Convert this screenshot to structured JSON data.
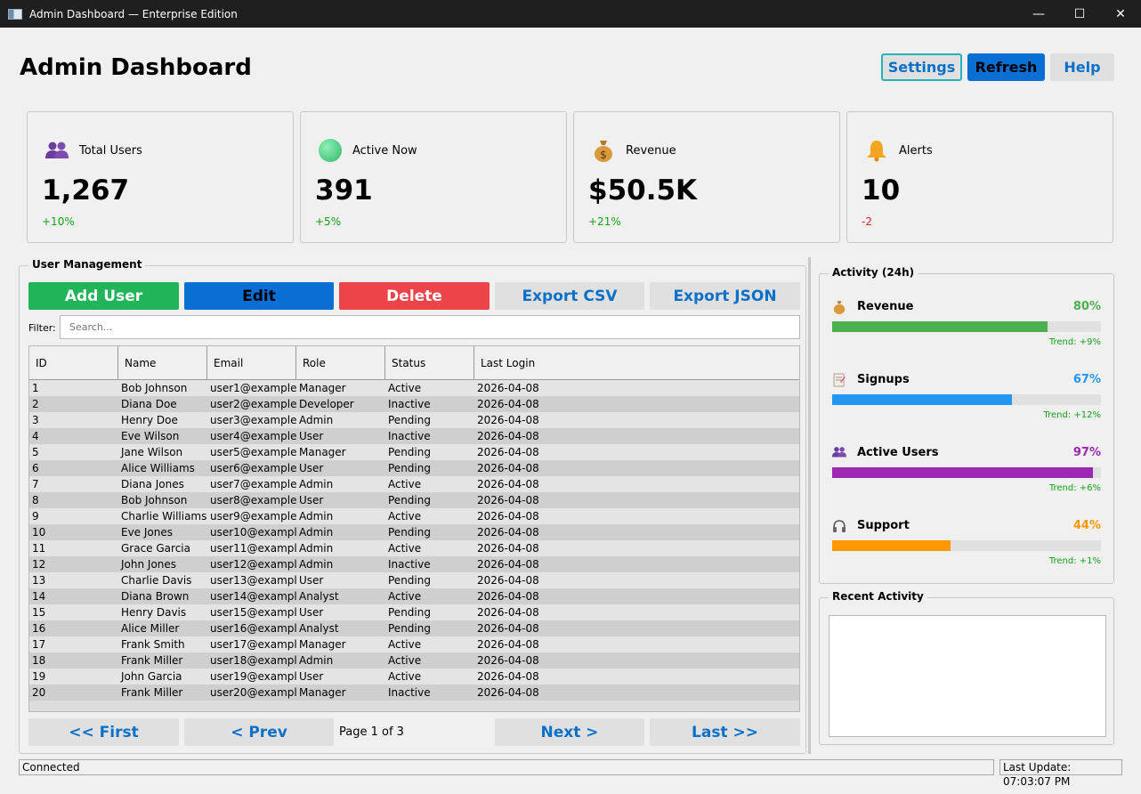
{
  "window": {
    "title": "Admin Dashboard — Enterprise Edition",
    "minimize_glyph": "—",
    "maximize_glyph": "☐",
    "close_glyph": "✕"
  },
  "header": {
    "title": "Admin Dashboard",
    "settings_label": "Settings",
    "refresh_label": "Refresh",
    "help_label": "Help"
  },
  "stats": [
    {
      "icon": "users-icon",
      "label": "Total Users",
      "value": "1,267",
      "change": "+10%",
      "trend": "positive"
    },
    {
      "icon": "green-dot-icon",
      "label": "Active Now",
      "value": "391",
      "change": "+5%",
      "trend": "positive"
    },
    {
      "icon": "money-bag-icon",
      "label": "Revenue",
      "value": "$50.5K",
      "change": "+21%",
      "trend": "positive"
    },
    {
      "icon": "bell-icon",
      "label": "Alerts",
      "value": "10",
      "change": "-2",
      "trend": "negative"
    }
  ],
  "user_management": {
    "title": "User Management",
    "buttons": {
      "add": "Add User",
      "edit": "Edit",
      "delete": "Delete",
      "export_csv": "Export CSV",
      "export_json": "Export JSON"
    },
    "filter_label": "Filter:",
    "filter_placeholder": "Search...",
    "filter_value": "",
    "columns": [
      "ID",
      "Name",
      "Email",
      "Role",
      "Status",
      "Last Login"
    ],
    "rows": [
      [
        "1",
        "Bob Johnson",
        "user1@example...",
        "Manager",
        "Active",
        "2026-04-08"
      ],
      [
        "2",
        "Diana Doe",
        "user2@example...",
        "Developer",
        "Inactive",
        "2026-04-08"
      ],
      [
        "3",
        "Henry Doe",
        "user3@example...",
        "Admin",
        "Pending",
        "2026-04-08"
      ],
      [
        "4",
        "Eve Wilson",
        "user4@example...",
        "User",
        "Inactive",
        "2026-04-08"
      ],
      [
        "5",
        "Jane Wilson",
        "user5@example...",
        "Manager",
        "Pending",
        "2026-04-08"
      ],
      [
        "6",
        "Alice Williams",
        "user6@example...",
        "User",
        "Pending",
        "2026-04-08"
      ],
      [
        "7",
        "Diana Jones",
        "user7@example...",
        "Admin",
        "Active",
        "2026-04-08"
      ],
      [
        "8",
        "Bob Johnson",
        "user8@example...",
        "User",
        "Pending",
        "2026-04-08"
      ],
      [
        "9",
        "Charlie Williams",
        "user9@example...",
        "Admin",
        "Active",
        "2026-04-08"
      ],
      [
        "10",
        "Eve Jones",
        "user10@exampl...",
        "Admin",
        "Pending",
        "2026-04-08"
      ],
      [
        "11",
        "Grace Garcia",
        "user11@exampl...",
        "Admin",
        "Active",
        "2026-04-08"
      ],
      [
        "12",
        "John Jones",
        "user12@exampl...",
        "Admin",
        "Inactive",
        "2026-04-08"
      ],
      [
        "13",
        "Charlie Davis",
        "user13@exampl...",
        "User",
        "Pending",
        "2026-04-08"
      ],
      [
        "14",
        "Diana Brown",
        "user14@exampl...",
        "Analyst",
        "Active",
        "2026-04-08"
      ],
      [
        "15",
        "Henry Davis",
        "user15@exampl...",
        "User",
        "Pending",
        "2026-04-08"
      ],
      [
        "16",
        "Alice Miller",
        "user16@exampl...",
        "Analyst",
        "Pending",
        "2026-04-08"
      ],
      [
        "17",
        "Frank Smith",
        "user17@exampl...",
        "Manager",
        "Active",
        "2026-04-08"
      ],
      [
        "18",
        "Frank Miller",
        "user18@exampl...",
        "Admin",
        "Active",
        "2026-04-08"
      ],
      [
        "19",
        "John Garcia",
        "user19@exampl...",
        "User",
        "Active",
        "2026-04-08"
      ],
      [
        "20",
        "Frank Miller",
        "user20@exampl...",
        "Manager",
        "Inactive",
        "2026-04-08"
      ]
    ],
    "pagination": {
      "first": "<< First",
      "prev": "< Prev",
      "page_info": "Page 1 of 3",
      "next": "Next >",
      "last": "Last >>"
    }
  },
  "activity": {
    "title": "Activity (24h)",
    "metrics": [
      {
        "icon": "money-bag-icon",
        "name": "Revenue",
        "percent_label": "80%",
        "percent": 80,
        "trend": "Trend: +9%",
        "color": "#4caf50"
      },
      {
        "icon": "memo-icon",
        "name": "Signups",
        "percent_label": "67%",
        "percent": 67,
        "trend": "Trend: +12%",
        "color": "#2196f3"
      },
      {
        "icon": "users-icon",
        "name": "Active Users",
        "percent_label": "97%",
        "percent": 97,
        "trend": "Trend: +6%",
        "color": "#9c27b0"
      },
      {
        "icon": "headphones-icon",
        "name": "Support",
        "percent_label": "44%",
        "percent": 44,
        "trend": "Trend: +1%",
        "color": "#ff9800"
      }
    ]
  },
  "recent_activity": {
    "title": "Recent Activity"
  },
  "statusbar": {
    "status": "Connected",
    "last_update": "Last Update: 07:03:07 PM"
  },
  "colors": {
    "accent_blue": "#0a6fd4",
    "add_green": "#22b45a",
    "delete_red": "#ec4448",
    "positive": "#14a014",
    "negative": "#e21e1e"
  }
}
